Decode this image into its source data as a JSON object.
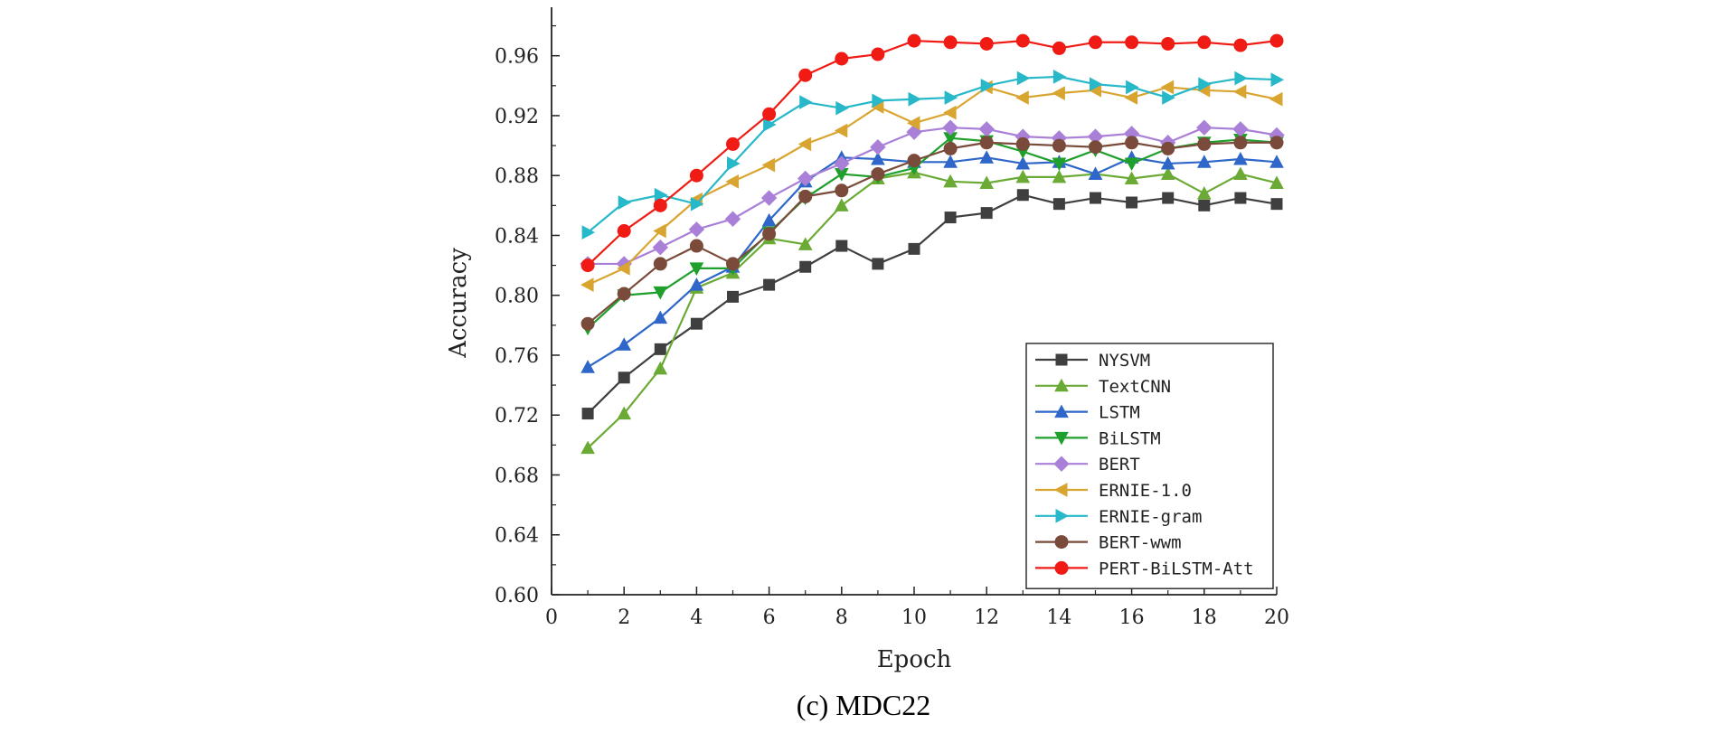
{
  "chart_data": {
    "type": "line",
    "caption": "(c) MDC22",
    "xlabel": "Epoch",
    "ylabel": "Accuracy",
    "xlim": [
      0,
      20
    ],
    "ylim": [
      0.6,
      0.99
    ],
    "xticks": [
      0,
      2,
      4,
      6,
      8,
      10,
      12,
      14,
      16,
      18,
      20
    ],
    "xtick_labels": [
      "0",
      "2",
      "4",
      "6",
      "8",
      "10",
      "12",
      "14",
      "16",
      "18",
      "20"
    ],
    "yticks": [
      0.6,
      0.64,
      0.68,
      0.72,
      0.76,
      0.8,
      0.84,
      0.88,
      0.92,
      0.96
    ],
    "ytick_labels": [
      "0.60",
      "0.64",
      "0.68",
      "0.72",
      "0.76",
      "0.80",
      "0.84",
      "0.88",
      "0.92",
      "0.96"
    ],
    "legend_position": "lower-right",
    "x": [
      1,
      2,
      3,
      4,
      5,
      6,
      7,
      8,
      9,
      10,
      11,
      12,
      13,
      14,
      15,
      16,
      17,
      18,
      19,
      20
    ],
    "series": [
      {
        "name": "NYSVM",
        "color": "#3f3f3f",
        "marker": "square",
        "values": [
          0.721,
          0.745,
          0.764,
          0.781,
          0.799,
          0.807,
          0.819,
          0.833,
          0.821,
          0.831,
          0.852,
          0.855,
          0.867,
          0.861,
          0.865,
          0.862,
          0.865,
          0.86,
          0.865,
          0.861
        ]
      },
      {
        "name": "TextCNN",
        "color": "#6aaa35",
        "marker": "triangle-up",
        "values": [
          0.698,
          0.721,
          0.751,
          0.805,
          0.815,
          0.838,
          0.834,
          0.86,
          0.878,
          0.882,
          0.876,
          0.875,
          0.879,
          0.879,
          0.881,
          0.878,
          0.881,
          0.868,
          0.881,
          0.875
        ]
      },
      {
        "name": "LSTM",
        "color": "#2e67c9",
        "marker": "triangle-up",
        "values": [
          0.752,
          0.767,
          0.785,
          0.807,
          0.819,
          0.85,
          0.876,
          0.892,
          0.891,
          0.889,
          0.889,
          0.892,
          0.888,
          0.889,
          0.881,
          0.892,
          0.888,
          0.889,
          0.891,
          0.889
        ]
      },
      {
        "name": "BiLSTM",
        "color": "#1fa02c",
        "marker": "triangle-down",
        "values": [
          0.778,
          0.8,
          0.802,
          0.818,
          0.818,
          0.842,
          0.865,
          0.881,
          0.879,
          0.885,
          0.905,
          0.903,
          0.896,
          0.888,
          0.897,
          0.888,
          0.898,
          0.902,
          0.904,
          0.902
        ]
      },
      {
        "name": "BERT",
        "color": "#a97fd8",
        "marker": "diamond",
        "values": [
          0.821,
          0.821,
          0.832,
          0.844,
          0.851,
          0.865,
          0.878,
          0.888,
          0.899,
          0.909,
          0.912,
          0.911,
          0.906,
          0.905,
          0.906,
          0.908,
          0.902,
          0.912,
          0.911,
          0.907
        ]
      },
      {
        "name": "ERNIE-1.0",
        "color": "#d9a531",
        "marker": "triangle-left",
        "values": [
          0.807,
          0.818,
          0.843,
          0.864,
          0.876,
          0.887,
          0.901,
          0.91,
          0.926,
          0.915,
          0.922,
          0.939,
          0.932,
          0.935,
          0.937,
          0.932,
          0.939,
          0.937,
          0.936,
          0.931
        ]
      },
      {
        "name": "ERNIE-gram",
        "color": "#27b8c9",
        "marker": "triangle-right",
        "values": [
          0.842,
          0.862,
          0.867,
          0.861,
          0.888,
          0.914,
          0.929,
          0.925,
          0.93,
          0.931,
          0.932,
          0.94,
          0.945,
          0.946,
          0.941,
          0.939,
          0.932,
          0.941,
          0.945,
          0.944
        ]
      },
      {
        "name": "BERT-wwm",
        "color": "#7a4a3a",
        "marker": "circle",
        "values": [
          0.781,
          0.801,
          0.821,
          0.833,
          0.821,
          0.841,
          0.866,
          0.87,
          0.881,
          0.89,
          0.898,
          0.902,
          0.901,
          0.9,
          0.899,
          0.902,
          0.898,
          0.901,
          0.902,
          0.902
        ]
      },
      {
        "name": "PERT-BiLSTM-Att",
        "color": "#f01b14",
        "marker": "circle",
        "values": [
          0.82,
          0.843,
          0.86,
          0.88,
          0.901,
          0.921,
          0.947,
          0.958,
          0.961,
          0.97,
          0.969,
          0.968,
          0.97,
          0.965,
          0.969,
          0.969,
          0.968,
          0.969,
          0.967,
          0.97
        ]
      }
    ]
  }
}
